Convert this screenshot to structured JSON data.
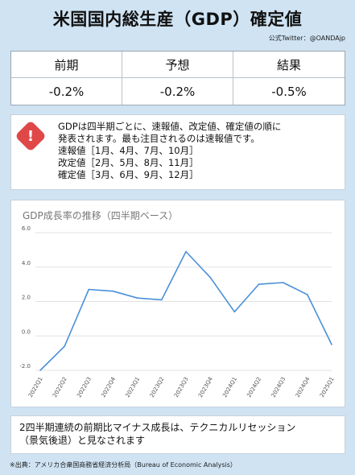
{
  "header": {
    "title": "米国国内総生産（GDP）確定値",
    "credit": "公式Twitter：@OANDAjp"
  },
  "summary_table": {
    "headers": [
      "前期",
      "予想",
      "結果"
    ],
    "values": [
      "-0.2%",
      "-0.2%",
      "-0.5%"
    ]
  },
  "notice": {
    "icon": "exclamation-icon",
    "icon_color": "#e04848",
    "lines": [
      "GDPは四半期ごとに、速報値、改定値、確定値の順に",
      "発表されます。最も注目されるのは速報値です。",
      "速報値［1月、4月、7月、10月］",
      "改定値［2月、5月、8月、11月］",
      "確定値［3月、6月、9月、12月］"
    ]
  },
  "chart_data": {
    "type": "line",
    "title": "GDP成長率の推移（四半期ベース）",
    "categories": [
      "2022Q1",
      "2022Q2",
      "2022Q3",
      "2022Q4",
      "2023Q1",
      "2023Q2",
      "2023Q3",
      "2023Q4",
      "2024Q1",
      "2024Q2",
      "2024Q3",
      "2024Q4",
      "2025Q1"
    ],
    "series": [
      {
        "values": [
          -2.0,
          -0.6,
          2.7,
          2.6,
          2.2,
          2.1,
          4.9,
          3.4,
          1.4,
          3.0,
          3.1,
          2.4,
          -0.5
        ]
      }
    ],
    "ylim": [
      -2.0,
      6.0
    ],
    "yticks": [
      "-2.0",
      "0.0",
      "2.0",
      "4.0",
      "6.0"
    ],
    "line_color": "#4a90d9",
    "grid": true
  },
  "bottom_note": {
    "line1": "2四半期連続の前期比マイナス成長は、テクニカルリセッション",
    "line2": "（景気後退）と見なされます"
  },
  "source": "※出典：アメリカ合衆国商務省経済分析局（Bureau of Economic Analysis）"
}
